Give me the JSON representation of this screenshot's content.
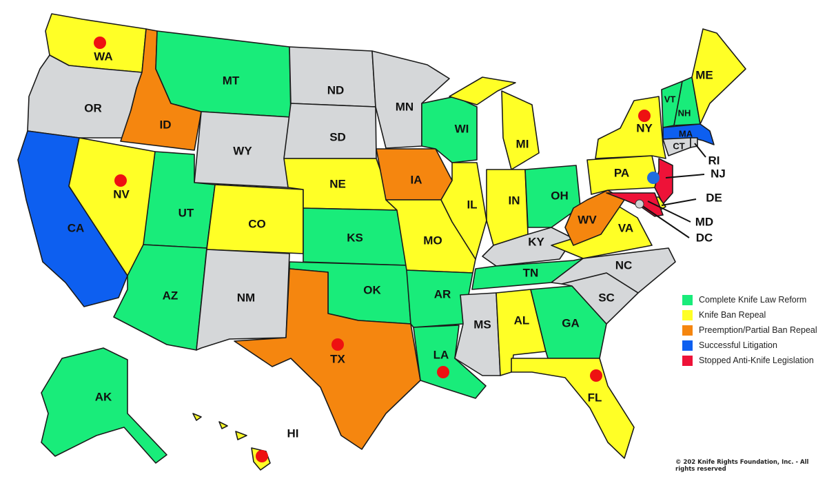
{
  "categories": {
    "reform": {
      "label": "Complete Knife Law Reform",
      "color": "#19ec7a"
    },
    "repeal": {
      "label": "Knife Ban Repeal",
      "color": "#ffff26"
    },
    "preemption": {
      "label": "Preemption/Partial Ban Repeal",
      "color": "#f5860f"
    },
    "litigation": {
      "label": "Successful Litigation",
      "color": "#0d5ff0"
    },
    "stopped": {
      "label": "Stopped Anti-Knife Legislation",
      "color": "#ee1238"
    },
    "none": {
      "label": "",
      "color": "#d5d7d9"
    }
  },
  "legend": [
    "reform",
    "repeal",
    "preemption",
    "litigation",
    "stopped"
  ],
  "states": [
    {
      "abbr": "WA",
      "category": "repeal",
      "marker": "red-dot"
    },
    {
      "abbr": "OR",
      "category": "none"
    },
    {
      "abbr": "ID",
      "category": "preemption"
    },
    {
      "abbr": "MT",
      "category": "reform"
    },
    {
      "abbr": "WY",
      "category": "none"
    },
    {
      "abbr": "CA",
      "category": "litigation"
    },
    {
      "abbr": "NV",
      "category": "repeal",
      "marker": "red-dot"
    },
    {
      "abbr": "UT",
      "category": "reform"
    },
    {
      "abbr": "AZ",
      "category": "reform"
    },
    {
      "abbr": "CO",
      "category": "repeal"
    },
    {
      "abbr": "NM",
      "category": "none"
    },
    {
      "abbr": "ND",
      "category": "none"
    },
    {
      "abbr": "SD",
      "category": "none"
    },
    {
      "abbr": "NE",
      "category": "repeal"
    },
    {
      "abbr": "KS",
      "category": "reform"
    },
    {
      "abbr": "OK",
      "category": "reform"
    },
    {
      "abbr": "TX",
      "category": "preemption",
      "marker": "red-dot"
    },
    {
      "abbr": "MN",
      "category": "none"
    },
    {
      "abbr": "IA",
      "category": "preemption"
    },
    {
      "abbr": "MO",
      "category": "repeal"
    },
    {
      "abbr": "AR",
      "category": "reform"
    },
    {
      "abbr": "LA",
      "category": "reform",
      "marker": "red-dot"
    },
    {
      "abbr": "WI",
      "category": "reform"
    },
    {
      "abbr": "IL",
      "category": "repeal"
    },
    {
      "abbr": "MI",
      "category": "repeal"
    },
    {
      "abbr": "IN",
      "category": "repeal"
    },
    {
      "abbr": "OH",
      "category": "reform"
    },
    {
      "abbr": "KY",
      "category": "none"
    },
    {
      "abbr": "TN",
      "category": "reform"
    },
    {
      "abbr": "MS",
      "category": "none"
    },
    {
      "abbr": "AL",
      "category": "repeal"
    },
    {
      "abbr": "GA",
      "category": "reform"
    },
    {
      "abbr": "FL",
      "category": "repeal",
      "marker": "red-dot"
    },
    {
      "abbr": "SC",
      "category": "none"
    },
    {
      "abbr": "NC",
      "category": "none"
    },
    {
      "abbr": "VA",
      "category": "repeal"
    },
    {
      "abbr": "WV",
      "category": "preemption"
    },
    {
      "abbr": "PA",
      "category": "repeal"
    },
    {
      "abbr": "NY",
      "category": "repeal",
      "marker": "red-dot"
    },
    {
      "abbr": "VT",
      "category": "reform"
    },
    {
      "abbr": "NH",
      "category": "reform"
    },
    {
      "abbr": "ME",
      "category": "repeal"
    },
    {
      "abbr": "MA",
      "category": "litigation"
    },
    {
      "abbr": "CT",
      "category": "none"
    },
    {
      "abbr": "RI",
      "category": "none"
    },
    {
      "abbr": "NJ",
      "category": "stopped",
      "marker": "blue-dot"
    },
    {
      "abbr": "DE",
      "category": "repeal"
    },
    {
      "abbr": "MD",
      "category": "stopped"
    },
    {
      "abbr": "DC",
      "category": "none",
      "marker": "gray-dot"
    },
    {
      "abbr": "AK",
      "category": "reform"
    },
    {
      "abbr": "HI",
      "category": "repeal",
      "marker": "red-dot"
    }
  ],
  "marker_colors": {
    "red-dot": "#ee1111",
    "blue-dot": "#1f6de0",
    "gray-dot": "#cfd1d3"
  },
  "copyright": "© 202  Knife Rights Foundation, Inc. - All rights reserved"
}
